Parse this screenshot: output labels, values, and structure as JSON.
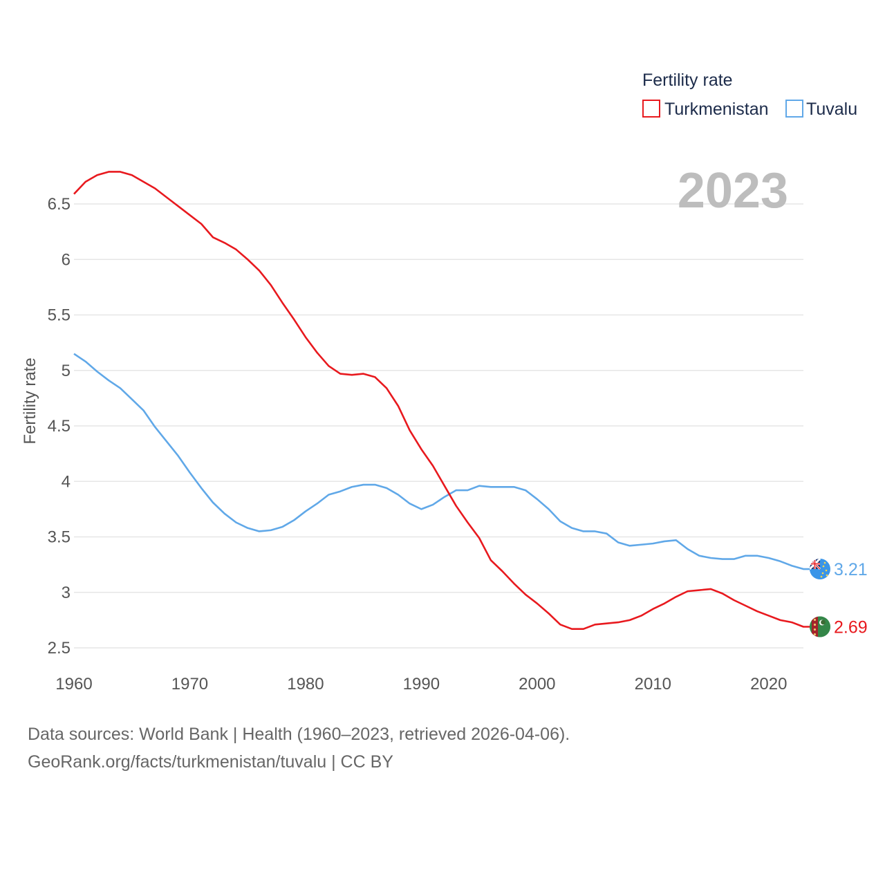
{
  "chart_data": {
    "type": "line",
    "title": "Fertility rate",
    "year_label": "2023",
    "ylabel": "Fertility rate",
    "xlabel": "",
    "xlim": [
      1960,
      2023
    ],
    "ylim": [
      2.4,
      6.8
    ],
    "x_ticks": [
      1960,
      1970,
      1980,
      1990,
      2000,
      2010,
      2020
    ],
    "y_ticks": [
      2.5,
      3,
      3.5,
      4,
      4.5,
      5,
      5.5,
      6,
      6.5
    ],
    "y_tick_labels": [
      "2.5",
      "3",
      "3.5",
      "4",
      "4.5",
      "5",
      "5.5",
      "6",
      "6.5"
    ],
    "x_tick_labels": [
      "1960",
      "1970",
      "1980",
      "1990",
      "2000",
      "2010",
      "2020"
    ],
    "grid": true,
    "legend_position": "top-right",
    "x": [
      1960,
      1961,
      1962,
      1963,
      1964,
      1965,
      1966,
      1967,
      1968,
      1969,
      1970,
      1971,
      1972,
      1973,
      1974,
      1975,
      1976,
      1977,
      1978,
      1979,
      1980,
      1981,
      1982,
      1983,
      1984,
      1985,
      1986,
      1987,
      1988,
      1989,
      1990,
      1991,
      1992,
      1993,
      1994,
      1995,
      1996,
      1997,
      1998,
      1999,
      2000,
      2001,
      2002,
      2003,
      2004,
      2005,
      2006,
      2007,
      2008,
      2009,
      2010,
      2011,
      2012,
      2013,
      2014,
      2015,
      2016,
      2017,
      2018,
      2019,
      2020,
      2021,
      2022,
      2023
    ],
    "series": [
      {
        "name": "Turkmenistan",
        "color": "#e8191e",
        "end_label": "2.69",
        "flag": "turkmenistan-flag",
        "values": [
          6.59,
          6.7,
          6.76,
          6.79,
          6.79,
          6.76,
          6.7,
          6.64,
          6.56,
          6.48,
          6.4,
          6.32,
          6.2,
          6.15,
          6.09,
          6.0,
          5.9,
          5.77,
          5.61,
          5.46,
          5.3,
          5.16,
          5.04,
          4.97,
          4.96,
          4.97,
          4.94,
          4.84,
          4.68,
          4.46,
          4.29,
          4.14,
          3.96,
          3.78,
          3.63,
          3.49,
          3.29,
          3.19,
          3.08,
          2.98,
          2.9,
          2.81,
          2.71,
          2.67,
          2.67,
          2.71,
          2.72,
          2.73,
          2.75,
          2.79,
          2.85,
          2.9,
          2.96,
          3.01,
          3.02,
          3.03,
          2.99,
          2.93,
          2.88,
          2.83,
          2.79,
          2.75,
          2.73,
          2.69
        ]
      },
      {
        "name": "Tuvalu",
        "color": "#60a8e8",
        "end_label": "3.21",
        "flag": "tuvalu-flag",
        "values": [
          5.15,
          5.08,
          4.99,
          4.91,
          4.84,
          4.74,
          4.64,
          4.49,
          4.36,
          4.23,
          4.08,
          3.94,
          3.81,
          3.71,
          3.63,
          3.58,
          3.55,
          3.56,
          3.59,
          3.65,
          3.73,
          3.8,
          3.88,
          3.91,
          3.95,
          3.97,
          3.97,
          3.94,
          3.88,
          3.8,
          3.75,
          3.79,
          3.86,
          3.92,
          3.92,
          3.96,
          3.95,
          3.95,
          3.95,
          3.92,
          3.84,
          3.75,
          3.64,
          3.58,
          3.55,
          3.55,
          3.53,
          3.45,
          3.42,
          3.43,
          3.44,
          3.46,
          3.47,
          3.39,
          3.33,
          3.31,
          3.3,
          3.3,
          3.33,
          3.33,
          3.31,
          3.28,
          3.24,
          3.21
        ]
      }
    ]
  },
  "footer": {
    "line1": "Data sources: World Bank | Health (1960–2023, retrieved 2026-04-06).",
    "line2": "GeoRank.org/facts/turkmenistan/tuvalu | CC BY"
  }
}
